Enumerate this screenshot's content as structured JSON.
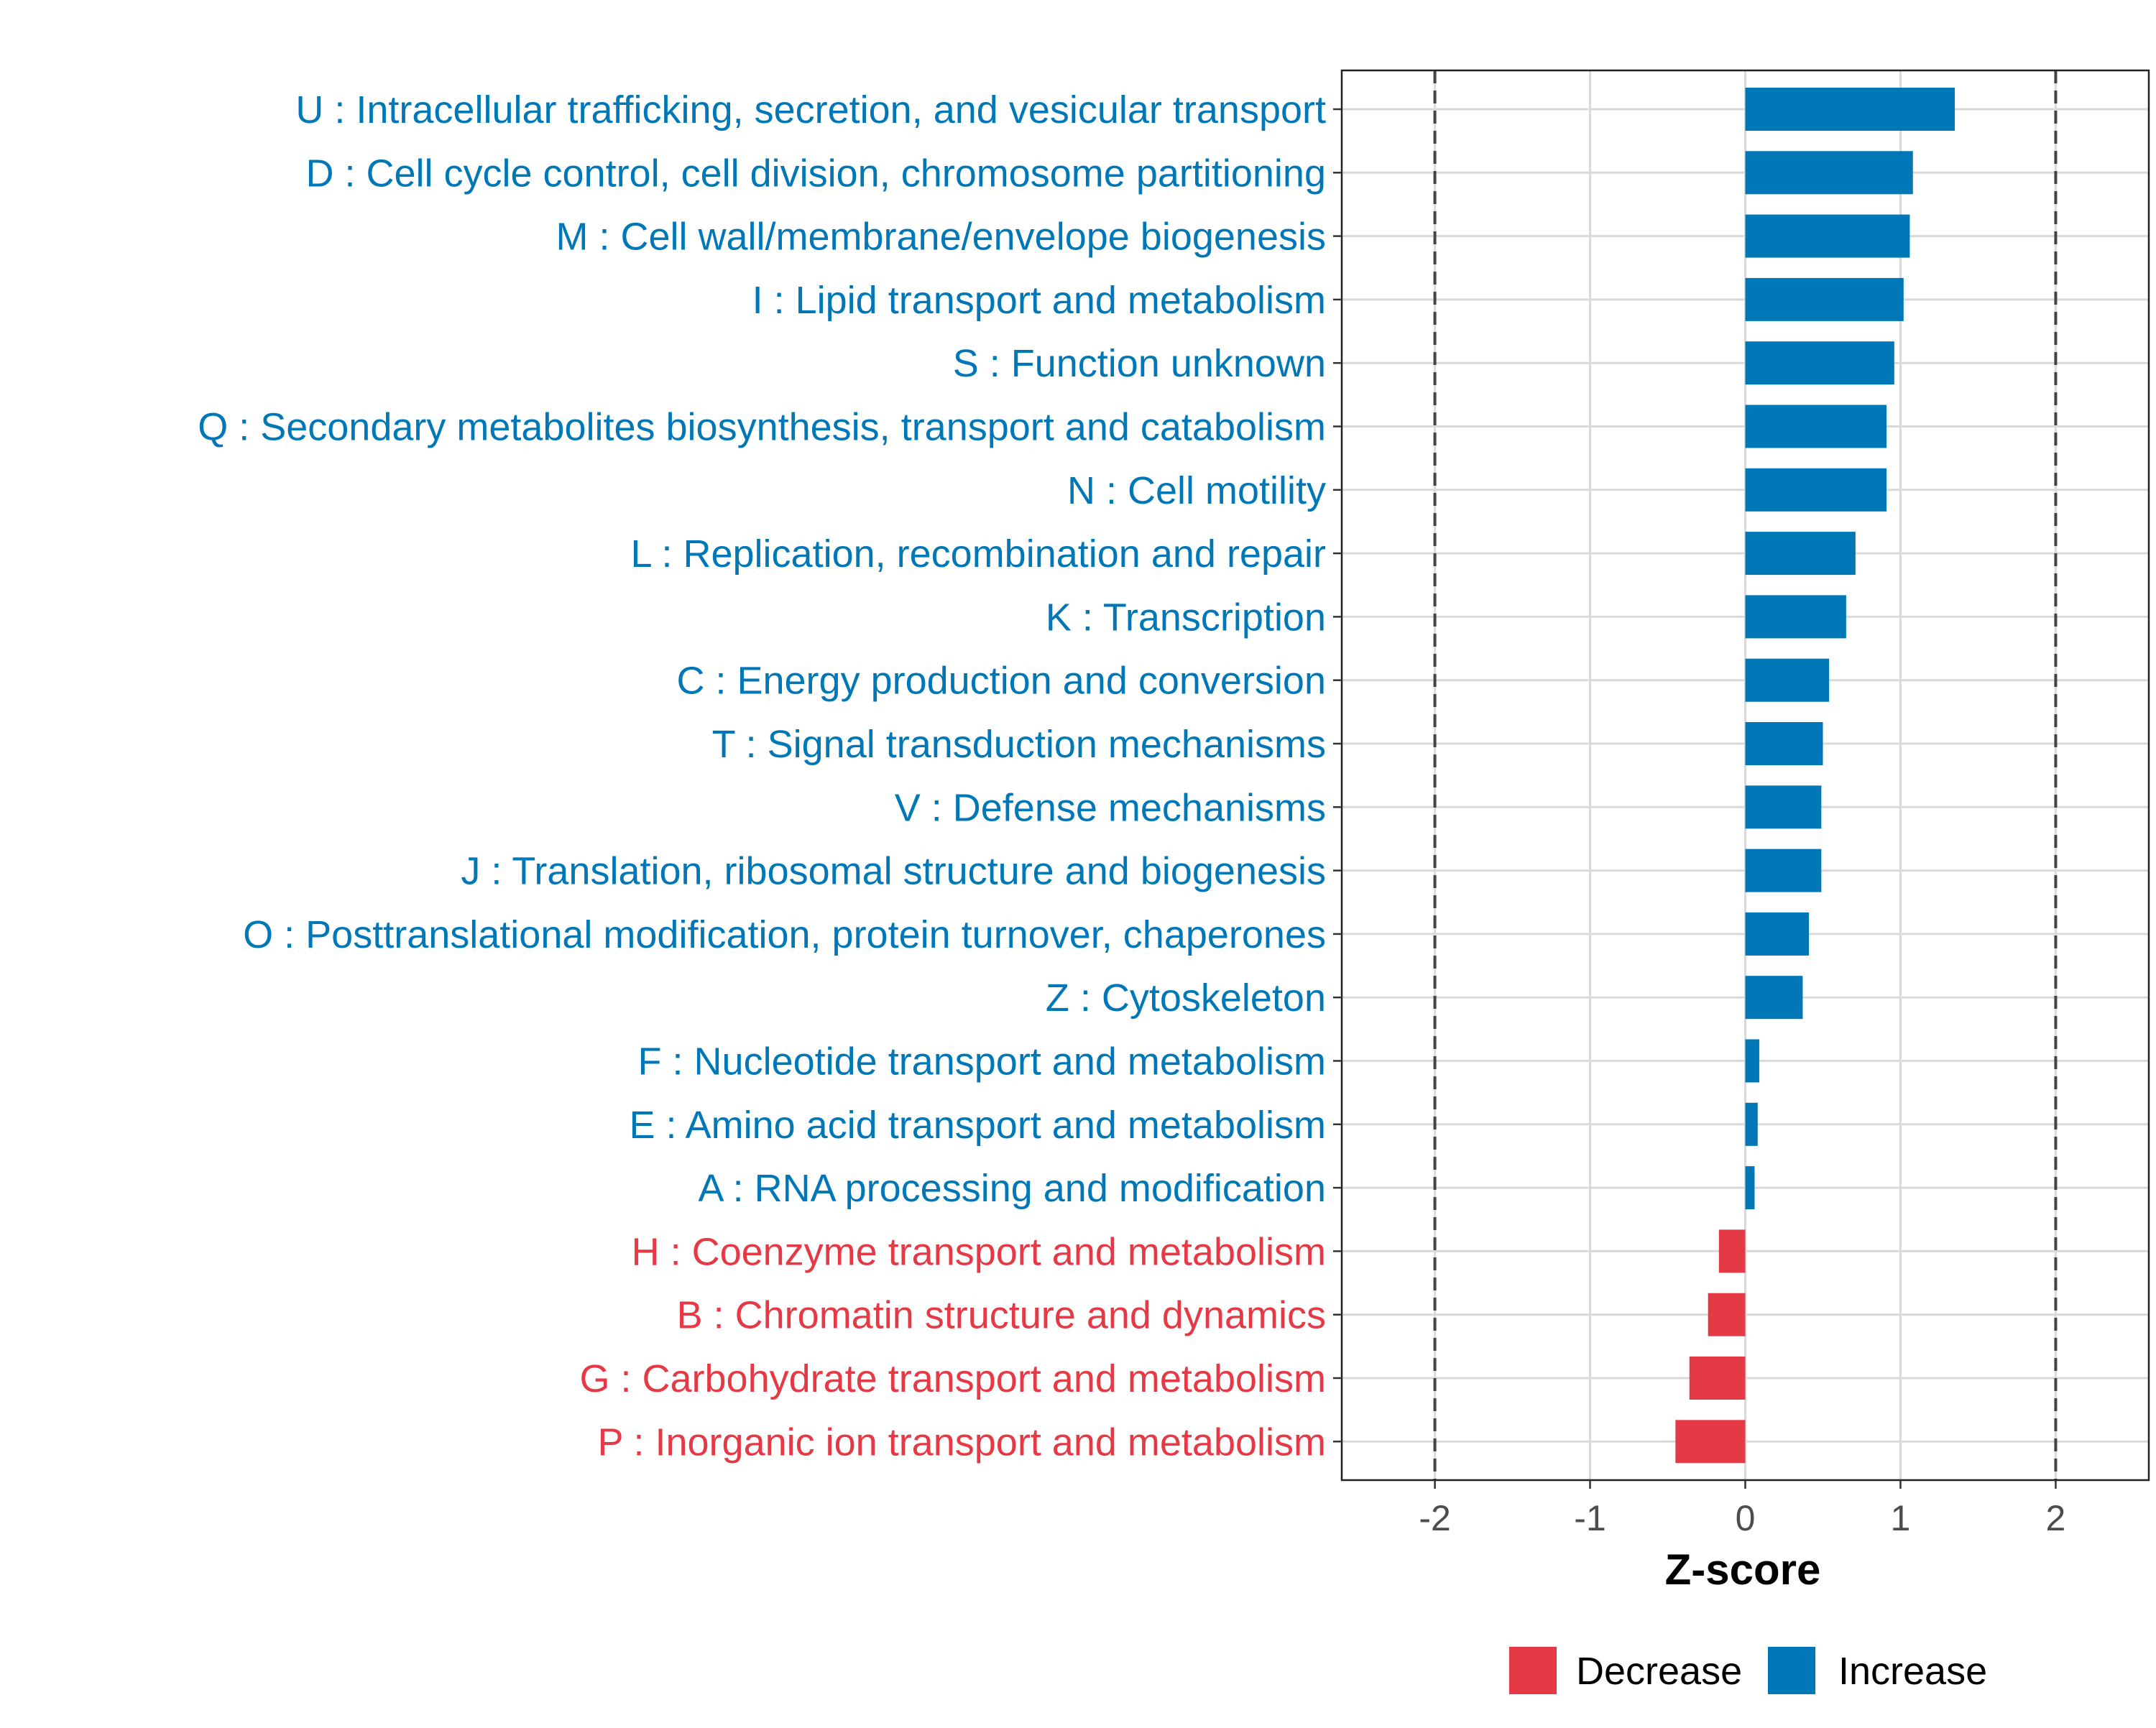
{
  "chart_data": {
    "type": "bar",
    "orientation": "horizontal",
    "xlabel": "Z-score",
    "xlim": [
      -2.6,
      2.6
    ],
    "xticks": [
      -2,
      -1,
      0,
      1,
      2
    ],
    "tick_labels": [
      "-2",
      "-1",
      "0",
      "1",
      "2"
    ],
    "reference_lines": [
      -2,
      2
    ],
    "grid": true,
    "categories": [
      {
        "label": "U : Intracellular trafficking, secretion, and vesicular transport",
        "value": 1.35,
        "group": "Increase"
      },
      {
        "label": "D : Cell cycle control, cell division, chromosome partitioning",
        "value": 1.08,
        "group": "Increase"
      },
      {
        "label": "M : Cell wall/membrane/envelope biogenesis",
        "value": 1.06,
        "group": "Increase"
      },
      {
        "label": "I : Lipid transport and metabolism",
        "value": 1.02,
        "group": "Increase"
      },
      {
        "label": "S : Function unknown",
        "value": 0.96,
        "group": "Increase"
      },
      {
        "label": "Q : Secondary metabolites biosynthesis, transport and catabolism",
        "value": 0.91,
        "group": "Increase"
      },
      {
        "label": "N : Cell motility",
        "value": 0.91,
        "group": "Increase"
      },
      {
        "label": "L : Replication, recombination and repair",
        "value": 0.71,
        "group": "Increase"
      },
      {
        "label": "K : Transcription",
        "value": 0.65,
        "group": "Increase"
      },
      {
        "label": "C : Energy production and conversion",
        "value": 0.54,
        "group": "Increase"
      },
      {
        "label": "T : Signal transduction mechanisms",
        "value": 0.5,
        "group": "Increase"
      },
      {
        "label": "V : Defense mechanisms",
        "value": 0.49,
        "group": "Increase"
      },
      {
        "label": "J : Translation, ribosomal structure and biogenesis",
        "value": 0.49,
        "group": "Increase"
      },
      {
        "label": "O : Posttranslational modification, protein turnover, chaperones",
        "value": 0.41,
        "group": "Increase"
      },
      {
        "label": "Z : Cytoskeleton",
        "value": 0.37,
        "group": "Increase"
      },
      {
        "label": "F : Nucleotide transport and metabolism",
        "value": 0.09,
        "group": "Increase"
      },
      {
        "label": "E : Amino acid transport and metabolism",
        "value": 0.08,
        "group": "Increase"
      },
      {
        "label": "A : RNA processing and modification",
        "value": 0.06,
        "group": "Increase"
      },
      {
        "label": "H : Coenzyme transport and metabolism",
        "value": -0.17,
        "group": "Decrease"
      },
      {
        "label": "B : Chromatin structure and dynamics",
        "value": -0.24,
        "group": "Decrease"
      },
      {
        "label": "G : Carbohydrate transport and metabolism",
        "value": -0.36,
        "group": "Decrease"
      },
      {
        "label": "P : Inorganic ion transport and metabolism",
        "value": -0.45,
        "group": "Decrease"
      }
    ],
    "legend": {
      "position": "bottom",
      "entries": [
        {
          "label": "Decrease",
          "color": "#e63946"
        },
        {
          "label": "Increase",
          "color": "#0077b6"
        }
      ]
    }
  }
}
